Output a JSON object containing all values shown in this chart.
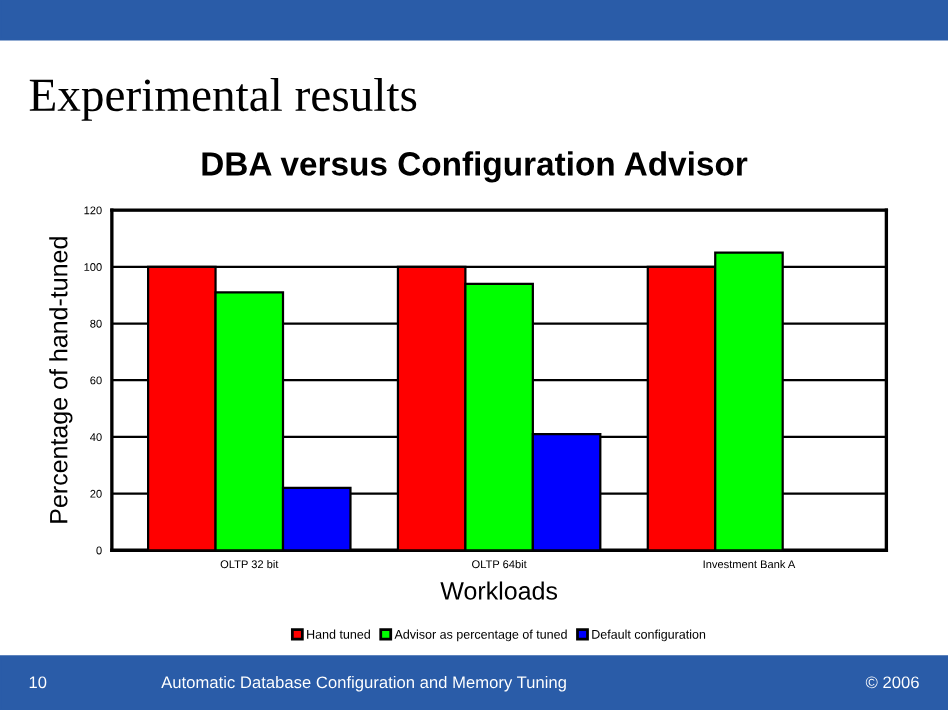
{
  "chart_data": {
    "type": "bar",
    "title": "Experimental results",
    "subtitle": "DBA versus Configuration Advisor",
    "xlabel": "Workloads",
    "ylabel": "Percentage of hand-tuned",
    "categories": [
      "OLTP 32 bit",
      "OLTP 64bit",
      "Investment Bank A"
    ],
    "series": [
      {
        "name": "Hand tuned",
        "color": "#ff0000",
        "values": [
          100,
          100,
          100
        ]
      },
      {
        "name": "Advisor as percentage of tuned",
        "color": "#00ff00",
        "values": [
          91,
          94,
          105
        ]
      },
      {
        "name": "Default configuration",
        "color": "#0000ff",
        "values": [
          22,
          41,
          null
        ]
      }
    ],
    "ylim": [
      0,
      120
    ],
    "yticks": [
      0,
      20,
      40,
      60,
      80,
      100,
      120
    ],
    "grid": "y",
    "legend": "bottom",
    "annotations": [
      "10",
      "Automatic Database Configuration and Memory Tuning",
      "© 2006"
    ]
  }
}
